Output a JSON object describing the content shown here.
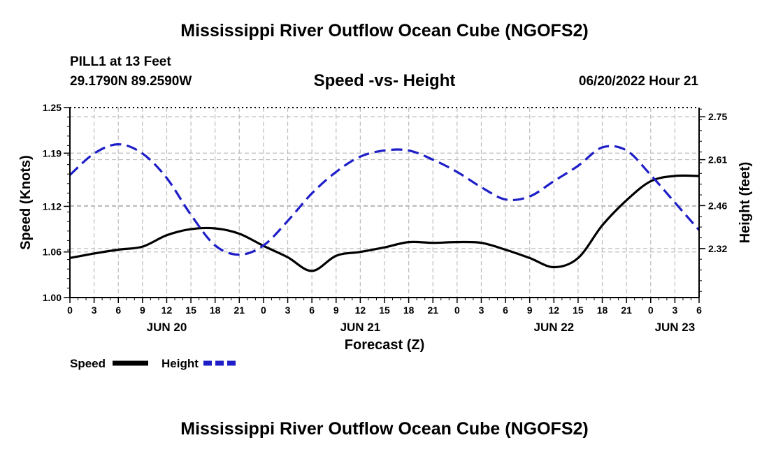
{
  "page": {
    "title": "Mississippi River Outflow Ocean Cube (NGOFS2)",
    "station": "PILL1 at 13 Feet",
    "coords": "29.1790N  89.2590W",
    "date": "06/20/2022 Hour 21",
    "footer_title": "Mississippi River Outflow Ocean Cube (NGOFS2)"
  },
  "chart_data": {
    "type": "line",
    "title": "Speed -vs- Height",
    "xlabel": "Forecast (Z)",
    "ylabel": "Speed (Knots)",
    "y2label": "Height (feet)",
    "xlim": [
      0,
      78
    ],
    "ylim": [
      1.0,
      1.25
    ],
    "y2lim": [
      2.16,
      2.78
    ],
    "yticks": [
      1.0,
      1.06,
      1.12,
      1.19,
      1.25
    ],
    "y2ticks": [
      2.32,
      2.46,
      2.61,
      2.75
    ],
    "ytick_labels": [
      "1.00",
      "1.06",
      "1.12",
      "1.19",
      "1.25"
    ],
    "y2tick_labels": [
      "2.32",
      "2.46",
      "2.61",
      "2.75"
    ],
    "xticks": [
      0,
      3,
      6,
      9,
      12,
      15,
      18,
      21,
      24,
      27,
      30,
      33,
      36,
      39,
      42,
      45,
      48,
      51,
      54,
      57,
      60,
      63,
      66,
      69,
      72,
      75,
      78
    ],
    "xtick_labels": [
      "0",
      "3",
      "6",
      "9",
      "12",
      "15",
      "18",
      "21",
      "0",
      "3",
      "6",
      "9",
      "12",
      "15",
      "18",
      "21",
      "0",
      "3",
      "6",
      "9",
      "12",
      "15",
      "18",
      "21",
      "0",
      "3",
      "6"
    ],
    "day_labels": [
      {
        "x": 12,
        "label": "JUN 20"
      },
      {
        "x": 36,
        "label": "JUN 21"
      },
      {
        "x": 60,
        "label": "JUN 22"
      },
      {
        "x": 75,
        "label": "JUN 23"
      }
    ],
    "grid": true,
    "legend_position": "bottom-left",
    "series": [
      {
        "name": "Speed",
        "axis": "left",
        "color": "#000000",
        "dash": "solid",
        "x": [
          0,
          3,
          6,
          9,
          12,
          15,
          18,
          21,
          24,
          27,
          30,
          33,
          36,
          39,
          42,
          45,
          48,
          51,
          54,
          57,
          60,
          63,
          66,
          69,
          72,
          75,
          78
        ],
        "y": [
          1.052,
          1.058,
          1.063,
          1.067,
          1.082,
          1.09,
          1.091,
          1.084,
          1.068,
          1.053,
          1.035,
          1.055,
          1.06,
          1.066,
          1.073,
          1.072,
          1.073,
          1.072,
          1.063,
          1.052,
          1.04,
          1.052,
          1.095,
          1.128,
          1.153,
          1.16,
          1.16
        ]
      },
      {
        "name": "Height",
        "axis": "right",
        "color": "#1e1ec8",
        "dash": "dashed",
        "x": [
          0,
          3,
          6,
          9,
          12,
          15,
          18,
          21,
          24,
          27,
          30,
          33,
          36,
          39,
          42,
          45,
          48,
          51,
          54,
          57,
          60,
          63,
          66,
          69,
          72,
          75,
          78
        ],
        "y": [
          2.56,
          2.63,
          2.66,
          2.63,
          2.55,
          2.43,
          2.33,
          2.3,
          2.33,
          2.41,
          2.5,
          2.57,
          2.62,
          2.64,
          2.64,
          2.61,
          2.57,
          2.52,
          2.48,
          2.49,
          2.54,
          2.59,
          2.65,
          2.64,
          2.56,
          2.47,
          2.38
        ]
      }
    ]
  }
}
